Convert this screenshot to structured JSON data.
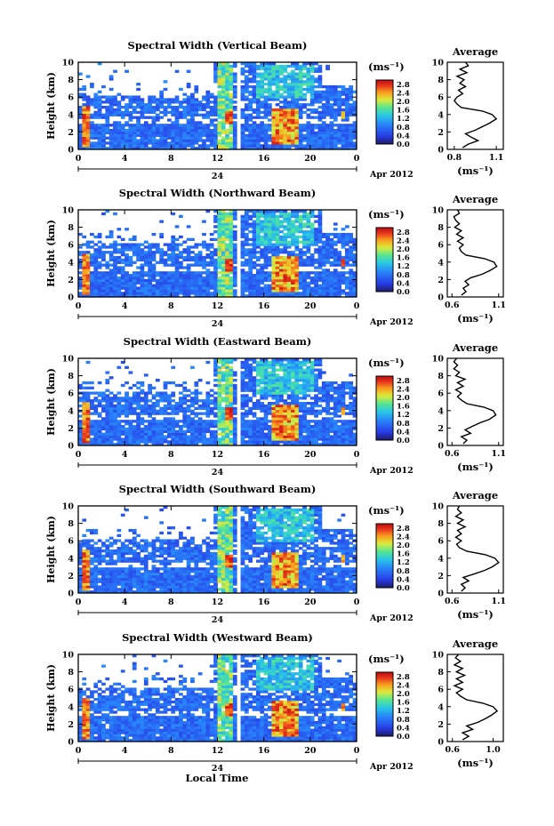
{
  "figure": {
    "xlabel": "Local Time",
    "date_label": "Apr 2012",
    "day_label": "24",
    "colorbar_unit": "(ms⁻¹)",
    "avg_title": "Average",
    "avg_unit": "(ms⁻¹)"
  },
  "chart_data": [
    {
      "type": "heatmap",
      "title": "Spectral Width (Vertical Beam)",
      "ylabel": "Height (km)",
      "xlabel": "",
      "x_ticks": [
        "0",
        "4",
        "8",
        "12",
        "16",
        "20",
        "0"
      ],
      "y_ticks": [
        "0",
        "2",
        "4",
        "6",
        "8",
        "10"
      ],
      "xlim": [
        0,
        24
      ],
      "ylim": [
        0,
        10
      ],
      "colorbar": {
        "ticks": [
          "0.0",
          "0.4",
          "0.8",
          "1.2",
          "1.6",
          "2.0",
          "2.4",
          "2.8"
        ],
        "range": [
          0.0,
          3.0
        ]
      },
      "average_profile": {
        "x_ticks": [
          "0.8",
          "1.1"
        ],
        "y_ticks": [
          "0",
          "2",
          "4",
          "6",
          "8",
          "10"
        ],
        "xlim": [
          0.75,
          1.15
        ],
        "points": [
          [
            0.86,
            0.2
          ],
          [
            0.9,
            0.6
          ],
          [
            0.97,
            1.0
          ],
          [
            0.92,
            1.4
          ],
          [
            0.88,
            1.8
          ],
          [
            0.95,
            2.2
          ],
          [
            1.0,
            2.6
          ],
          [
            1.05,
            3.0
          ],
          [
            1.1,
            3.5
          ],
          [
            1.07,
            4.0
          ],
          [
            1.0,
            4.4
          ],
          [
            0.85,
            4.8
          ],
          [
            0.82,
            5.2
          ],
          [
            0.8,
            5.6
          ],
          [
            0.82,
            6.0
          ],
          [
            0.86,
            6.4
          ],
          [
            0.83,
            6.8
          ],
          [
            0.88,
            7.2
          ],
          [
            0.84,
            7.6
          ],
          [
            0.87,
            8.0
          ],
          [
            0.82,
            8.4
          ],
          [
            0.89,
            8.8
          ],
          [
            0.84,
            9.2
          ],
          [
            0.9,
            9.6
          ],
          [
            0.88,
            10.0
          ]
        ]
      }
    },
    {
      "type": "heatmap",
      "title": "Spectral Width (Northward Beam)",
      "ylabel": "Height (km)",
      "xlabel": "",
      "x_ticks": [
        "0",
        "4",
        "8",
        "12",
        "16",
        "20",
        "0"
      ],
      "y_ticks": [
        "0",
        "2",
        "4",
        "6",
        "8",
        "10"
      ],
      "xlim": [
        0,
        24
      ],
      "ylim": [
        0,
        10
      ],
      "colorbar": {
        "ticks": [
          "0.0",
          "0.4",
          "0.8",
          "1.2",
          "1.6",
          "2.0",
          "2.4",
          "2.8"
        ],
        "range": [
          0.0,
          3.0
        ]
      },
      "average_profile": {
        "x_ticks": [
          "0.6",
          "1.1"
        ],
        "y_ticks": [
          "0",
          "2",
          "4",
          "6",
          "8",
          "10"
        ],
        "xlim": [
          0.55,
          1.15
        ],
        "points": [
          [
            0.7,
            0.2
          ],
          [
            0.75,
            0.6
          ],
          [
            0.72,
            1.0
          ],
          [
            0.78,
            1.4
          ],
          [
            0.74,
            1.8
          ],
          [
            0.8,
            2.2
          ],
          [
            0.92,
            2.6
          ],
          [
            1.0,
            3.0
          ],
          [
            1.08,
            3.5
          ],
          [
            1.05,
            4.0
          ],
          [
            0.95,
            4.4
          ],
          [
            0.75,
            4.8
          ],
          [
            0.7,
            5.2
          ],
          [
            0.68,
            5.6
          ],
          [
            0.72,
            6.0
          ],
          [
            0.66,
            6.4
          ],
          [
            0.72,
            6.8
          ],
          [
            0.65,
            7.2
          ],
          [
            0.7,
            7.6
          ],
          [
            0.63,
            8.0
          ],
          [
            0.68,
            8.4
          ],
          [
            0.64,
            8.8
          ],
          [
            0.62,
            9.2
          ],
          [
            0.68,
            9.6
          ],
          [
            0.66,
            10.0
          ]
        ]
      }
    },
    {
      "type": "heatmap",
      "title": "Spectral Width (Eastward Beam)",
      "ylabel": "Height (km)",
      "xlabel": "",
      "x_ticks": [
        "0",
        "4",
        "8",
        "12",
        "16",
        "20",
        "0"
      ],
      "y_ticks": [
        "0",
        "2",
        "4",
        "6",
        "8",
        "10"
      ],
      "xlim": [
        0,
        24
      ],
      "ylim": [
        0,
        10
      ],
      "colorbar": {
        "ticks": [
          "0.0",
          "0.4",
          "0.8",
          "1.2",
          "1.6",
          "2.0",
          "2.4",
          "2.8"
        ],
        "range": [
          0.0,
          3.0
        ]
      },
      "average_profile": {
        "x_ticks": [
          "0.6",
          "1.1"
        ],
        "y_ticks": [
          "0",
          "2",
          "4",
          "6",
          "8",
          "10"
        ],
        "xlim": [
          0.55,
          1.15
        ],
        "points": [
          [
            0.72,
            0.2
          ],
          [
            0.76,
            0.6
          ],
          [
            0.7,
            1.0
          ],
          [
            0.8,
            1.4
          ],
          [
            0.74,
            1.8
          ],
          [
            0.82,
            2.2
          ],
          [
            0.9,
            2.6
          ],
          [
            1.0,
            3.0
          ],
          [
            1.07,
            3.5
          ],
          [
            1.04,
            4.0
          ],
          [
            0.94,
            4.4
          ],
          [
            0.76,
            4.8
          ],
          [
            0.7,
            5.2
          ],
          [
            0.66,
            5.6
          ],
          [
            0.7,
            6.0
          ],
          [
            0.64,
            6.4
          ],
          [
            0.72,
            6.8
          ],
          [
            0.66,
            7.2
          ],
          [
            0.74,
            7.6
          ],
          [
            0.64,
            8.0
          ],
          [
            0.68,
            8.4
          ],
          [
            0.62,
            8.8
          ],
          [
            0.66,
            9.2
          ],
          [
            0.62,
            9.6
          ],
          [
            0.65,
            10.0
          ]
        ]
      }
    },
    {
      "type": "heatmap",
      "title": "Spectral Width (Southward Beam)",
      "ylabel": "Height (km)",
      "xlabel": "",
      "x_ticks": [
        "0",
        "4",
        "8",
        "12",
        "16",
        "20",
        "0"
      ],
      "y_ticks": [
        "0",
        "2",
        "4",
        "6",
        "8",
        "10"
      ],
      "xlim": [
        0,
        24
      ],
      "ylim": [
        0,
        10
      ],
      "colorbar": {
        "ticks": [
          "0.0",
          "0.4",
          "0.8",
          "1.2",
          "1.6",
          "2.0",
          "2.4",
          "2.8"
        ],
        "range": [
          0.0,
          3.0
        ]
      },
      "average_profile": {
        "x_ticks": [
          "0.6",
          "1.1"
        ],
        "y_ticks": [
          "0",
          "2",
          "4",
          "6",
          "8",
          "10"
        ],
        "xlim": [
          0.55,
          1.15
        ],
        "points": [
          [
            0.7,
            0.2
          ],
          [
            0.74,
            0.6
          ],
          [
            0.7,
            1.0
          ],
          [
            0.78,
            1.4
          ],
          [
            0.72,
            1.8
          ],
          [
            0.84,
            2.2
          ],
          [
            0.95,
            2.6
          ],
          [
            1.03,
            3.0
          ],
          [
            1.1,
            3.5
          ],
          [
            1.06,
            4.0
          ],
          [
            0.96,
            4.4
          ],
          [
            0.76,
            4.8
          ],
          [
            0.68,
            5.2
          ],
          [
            0.65,
            5.6
          ],
          [
            0.7,
            6.0
          ],
          [
            0.64,
            6.4
          ],
          [
            0.7,
            6.8
          ],
          [
            0.66,
            7.2
          ],
          [
            0.74,
            7.6
          ],
          [
            0.66,
            8.0
          ],
          [
            0.72,
            8.4
          ],
          [
            0.64,
            8.8
          ],
          [
            0.7,
            9.2
          ],
          [
            0.66,
            9.6
          ],
          [
            0.68,
            10.0
          ]
        ]
      }
    },
    {
      "type": "heatmap",
      "title": "Spectral Width (Westward Beam)",
      "ylabel": "Height (km)",
      "xlabel": "Local Time",
      "x_ticks": [
        "0",
        "4",
        "8",
        "12",
        "16",
        "20",
        "0"
      ],
      "y_ticks": [
        "0",
        "2",
        "4",
        "6",
        "8",
        "10"
      ],
      "xlim": [
        0,
        24
      ],
      "ylim": [
        0,
        10
      ],
      "colorbar": {
        "ticks": [
          "0.0",
          "0.4",
          "0.8",
          "1.2",
          "1.6",
          "2.0",
          "2.4",
          "2.8"
        ],
        "range": [
          0.0,
          3.0
        ]
      },
      "average_profile": {
        "x_ticks": [
          "0.6",
          "1.0"
        ],
        "y_ticks": [
          "0",
          "2",
          "4",
          "6",
          "8",
          "10"
        ],
        "xlim": [
          0.55,
          1.1
        ],
        "points": [
          [
            0.7,
            0.2
          ],
          [
            0.76,
            0.6
          ],
          [
            0.7,
            1.0
          ],
          [
            0.8,
            1.4
          ],
          [
            0.74,
            1.8
          ],
          [
            0.85,
            2.2
          ],
          [
            0.92,
            2.6
          ],
          [
            0.98,
            3.0
          ],
          [
            1.04,
            3.5
          ],
          [
            1.0,
            4.0
          ],
          [
            0.9,
            4.4
          ],
          [
            0.74,
            4.8
          ],
          [
            0.68,
            5.2
          ],
          [
            0.64,
            5.6
          ],
          [
            0.7,
            6.0
          ],
          [
            0.62,
            6.4
          ],
          [
            0.7,
            6.8
          ],
          [
            0.64,
            7.2
          ],
          [
            0.72,
            7.6
          ],
          [
            0.64,
            8.0
          ],
          [
            0.7,
            8.4
          ],
          [
            0.62,
            8.8
          ],
          [
            0.68,
            9.2
          ],
          [
            0.63,
            9.6
          ],
          [
            0.66,
            10.0
          ]
        ]
      }
    }
  ]
}
